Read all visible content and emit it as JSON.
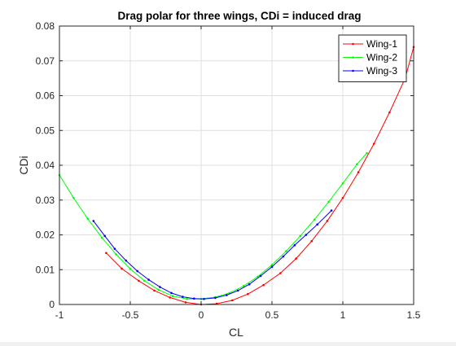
{
  "chart_data": {
    "type": "line",
    "title": "Drag polar for three wings, CDi = induced drag",
    "xlabel": "CL",
    "ylabel": "CDi",
    "xlim": [
      -1,
      1.5
    ],
    "ylim": [
      0,
      0.08
    ],
    "xticks": [
      -1,
      -0.5,
      0,
      0.5,
      1,
      1.5
    ],
    "xtick_labels": [
      "-1",
      "-0.5",
      "0",
      "0.5",
      "1",
      "1.5"
    ],
    "yticks": [
      0,
      0.01,
      0.02,
      0.03,
      0.04,
      0.05,
      0.06,
      0.07,
      0.08
    ],
    "ytick_labels": [
      "0",
      "0.01",
      "0.02",
      "0.03",
      "0.04",
      "0.05",
      "0.06",
      "0.07",
      "0.08"
    ],
    "grid": true,
    "legend_position": "top-right",
    "series": [
      {
        "name": "Wing-1",
        "color": "#ff0000",
        "x": [
          -0.67,
          -0.56,
          -0.44,
          -0.33,
          -0.22,
          -0.11,
          0.0,
          0.11,
          0.22,
          0.33,
          0.44,
          0.56,
          0.67,
          0.78,
          0.89,
          1.0,
          1.11,
          1.22,
          1.33,
          1.44,
          1.5
        ],
        "y": [
          0.0148,
          0.0103,
          0.0068,
          0.004,
          0.002,
          0.0006,
          0.0,
          0.0002,
          0.0012,
          0.003,
          0.0056,
          0.009,
          0.0132,
          0.0182,
          0.024,
          0.0306,
          0.038,
          0.0462,
          0.0552,
          0.065,
          0.074
        ]
      },
      {
        "name": "Wing-2",
        "color": "#00ff00",
        "x": [
          -1.0,
          -0.9,
          -0.8,
          -0.7,
          -0.6,
          -0.5,
          -0.4,
          -0.3,
          -0.2,
          -0.1,
          0.0,
          0.1,
          0.2,
          0.3,
          0.4,
          0.5,
          0.6,
          0.7,
          0.8,
          0.9,
          1.0,
          1.1,
          1.17
        ],
        "y": [
          0.0372,
          0.0306,
          0.0246,
          0.0192,
          0.0144,
          0.0102,
          0.0068,
          0.0042,
          0.0024,
          0.0016,
          0.0016,
          0.0021,
          0.0033,
          0.0053,
          0.008,
          0.0114,
          0.0153,
          0.0197,
          0.0244,
          0.0295,
          0.0348,
          0.0403,
          0.0435
        ]
      },
      {
        "name": "Wing-3",
        "color": "#0000ff",
        "x": [
          -0.76,
          -0.68,
          -0.61,
          -0.53,
          -0.45,
          -0.37,
          -0.29,
          -0.21,
          -0.13,
          -0.05,
          0.02,
          0.1,
          0.18,
          0.26,
          0.34,
          0.42,
          0.5,
          0.58,
          0.66,
          0.74,
          0.82,
          0.92
        ],
        "y": [
          0.024,
          0.0197,
          0.016,
          0.0126,
          0.0096,
          0.0071,
          0.005,
          0.0033,
          0.0022,
          0.0017,
          0.0016,
          0.0019,
          0.0027,
          0.004,
          0.0058,
          0.0082,
          0.0108,
          0.0138,
          0.017,
          0.02,
          0.023,
          0.027
        ]
      }
    ]
  }
}
